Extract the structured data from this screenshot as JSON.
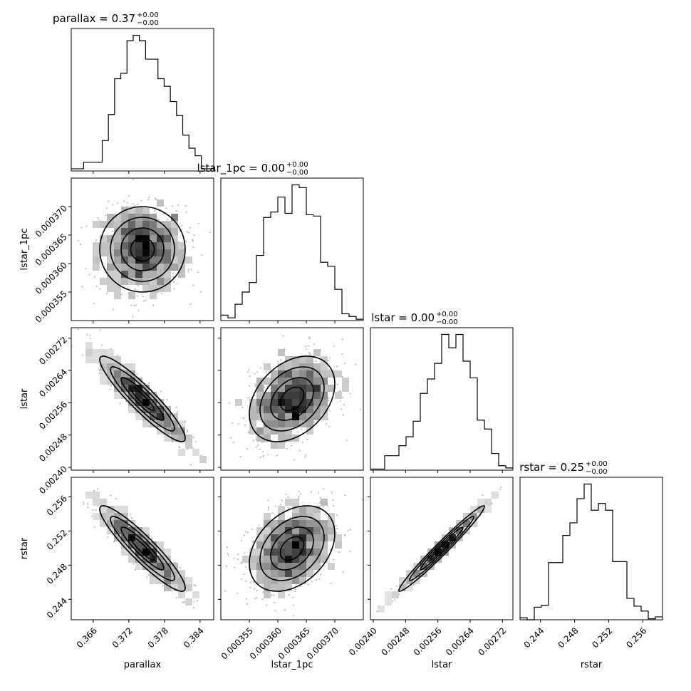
{
  "chart_data": {
    "type": "corner",
    "parameters": [
      "parallax",
      "lstar_1pc",
      "lstar",
      "rstar"
    ],
    "axis_labels": [
      "parallax",
      "lstar_1pc",
      "lstar",
      "rstar"
    ],
    "titles": [
      {
        "name": "parallax",
        "value": "0.37",
        "plus": "+0.00",
        "minus": "−0.00"
      },
      {
        "name": "lstar_1pc",
        "value": "0.00",
        "plus": "+0.00",
        "minus": "−0.00"
      },
      {
        "name": "lstar",
        "value": "0.00",
        "plus": "+0.00",
        "minus": "−0.00"
      },
      {
        "name": "rstar",
        "value": "0.25",
        "plus": "+0.00",
        "minus": "−0.00"
      }
    ],
    "ranges": [
      [
        0.3623,
        0.3863
      ],
      [
        0.00035,
        0.000375
      ],
      [
        0.002393,
        0.002746
      ],
      [
        0.2416,
        0.2583
      ]
    ],
    "ticks": {
      "parallax": [
        "0.366",
        "0.372",
        "0.378",
        "0.384"
      ],
      "lstar_1pc": [
        "0.000355",
        "0.000360",
        "0.000365",
        "0.000370"
      ],
      "lstar": [
        "0.00240",
        "0.00248",
        "0.00256",
        "0.00264",
        "0.00272"
      ],
      "rstar": [
        "0.244",
        "0.248",
        "0.252",
        "0.256"
      ]
    },
    "histograms": [
      [
        2,
        2,
        8,
        8,
        8,
        28,
        52,
        85,
        90,
        120,
        125,
        120,
        103,
        103,
        85,
        78,
        64,
        51,
        33,
        21,
        14,
        2,
        2
      ],
      [
        4,
        2,
        12,
        21,
        28,
        48,
        76,
        80,
        91,
        79,
        100,
        98,
        78,
        77,
        43,
        40,
        23,
        5,
        3,
        1
      ],
      [
        1,
        1,
        13,
        13,
        22,
        30,
        44,
        69,
        82,
        96,
        122,
        110,
        122,
        98,
        83,
        45,
        37,
        15,
        4,
        2
      ],
      [
        2,
        0,
        13,
        15,
        59,
        59,
        87,
        100,
        125,
        140,
        113,
        120,
        113,
        60,
        60,
        22,
        14,
        9,
        1,
        3
      ]
    ],
    "correlations": {
      "lstar_1pc_vs_parallax": 0.0,
      "lstar_vs_parallax": -0.92,
      "lstar_vs_lstar_1pc": 0.35,
      "rstar_vs_parallax": -0.92,
      "rstar_vs_lstar_1pc": 0.35,
      "rstar_vs_lstar": 0.99
    }
  }
}
